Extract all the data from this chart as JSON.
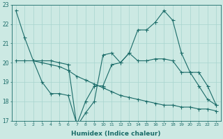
{
  "xlabel": "Humidex (Indice chaleur)",
  "bg_color": "#cce9e3",
  "line_color": "#1a6b68",
  "grid_color": "#a8d4ce",
  "xlim": [
    -0.5,
    23.5
  ],
  "ylim": [
    17,
    23
  ],
  "yticks": [
    17,
    18,
    19,
    20,
    21,
    22,
    23
  ],
  "xticks": [
    0,
    1,
    2,
    3,
    4,
    5,
    6,
    7,
    8,
    9,
    10,
    11,
    12,
    13,
    14,
    15,
    16,
    17,
    18,
    19,
    20,
    21,
    22,
    23
  ],
  "line1_x": [
    0,
    1,
    2,
    3,
    4,
    5,
    6,
    7,
    8,
    9,
    10,
    11,
    12,
    13,
    14,
    15,
    16,
    17,
    18,
    19,
    20,
    21,
    22,
    23
  ],
  "line1_y": [
    22.7,
    21.3,
    20.1,
    20.1,
    20.1,
    20.0,
    19.9,
    16.7,
    17.4,
    18.0,
    20.4,
    20.5,
    20.0,
    20.5,
    21.7,
    21.7,
    22.1,
    22.7,
    22.2,
    20.5,
    19.5,
    19.5,
    18.8,
    17.8
  ],
  "line2_x": [
    0,
    1,
    2,
    3,
    4,
    5,
    6,
    7,
    8,
    9,
    10,
    11,
    12,
    13,
    14,
    15,
    16,
    17,
    18,
    19,
    20,
    21,
    22,
    23
  ],
  "line2_y": [
    20.1,
    20.1,
    20.1,
    20.0,
    19.9,
    19.8,
    19.6,
    19.3,
    19.1,
    18.9,
    18.7,
    18.5,
    18.3,
    18.2,
    18.1,
    18.0,
    17.9,
    17.8,
    17.8,
    17.7,
    17.7,
    17.6,
    17.6,
    17.5
  ],
  "line3_x": [
    2,
    3,
    4,
    5,
    6,
    7,
    8,
    9,
    10,
    11,
    12,
    13,
    14,
    15,
    16,
    17,
    18,
    19,
    20,
    21,
    22,
    23
  ],
  "line3_y": [
    20.1,
    19.0,
    18.4,
    18.4,
    18.3,
    16.8,
    18.0,
    18.8,
    18.8,
    19.9,
    20.0,
    20.5,
    20.1,
    20.1,
    20.2,
    20.2,
    20.1,
    19.5,
    19.5,
    18.8,
    18.1,
    17.8
  ]
}
